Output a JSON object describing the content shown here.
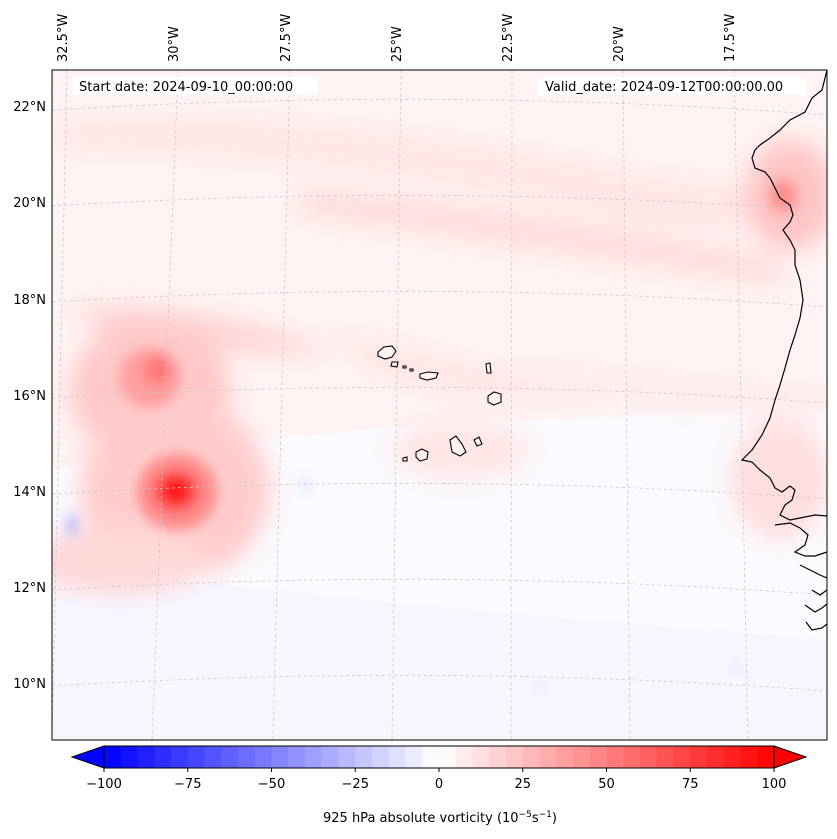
{
  "map": {
    "title_left": "Start date: 2024-09-10_00:00:00",
    "title_right": "Valid_date: 2024-09-12T00:00:00.00",
    "lon_labels": [
      "32.5°W",
      "30°W",
      "27.5°W",
      "25°W",
      "22.5°W",
      "20°W",
      "17.5°W"
    ],
    "lat_labels": [
      "22°N",
      "20°N",
      "18°N",
      "16°N",
      "14°N",
      "12°N",
      "10°N"
    ],
    "gridlines": true,
    "colors": {
      "negative": "#0000ff",
      "neutral": "#ffffff",
      "positive": "#ff0000",
      "grid": "#c8c8c8",
      "coast": "#000000"
    }
  },
  "colorbar": {
    "tick_labels": [
      "−100",
      "−75",
      "−50",
      "−25",
      "0",
      "25",
      "50",
      "75",
      "100"
    ],
    "ticks": [
      -100,
      -75,
      -50,
      -25,
      0,
      25,
      50,
      75,
      100
    ],
    "range": [
      -100,
      100
    ],
    "step": 5,
    "extend": "both",
    "label_main": "925 hPa absolute vorticity (10",
    "label_exp1": "−5",
    "label_mid": "s",
    "label_exp2": "−1",
    "label_end": ")"
  }
}
